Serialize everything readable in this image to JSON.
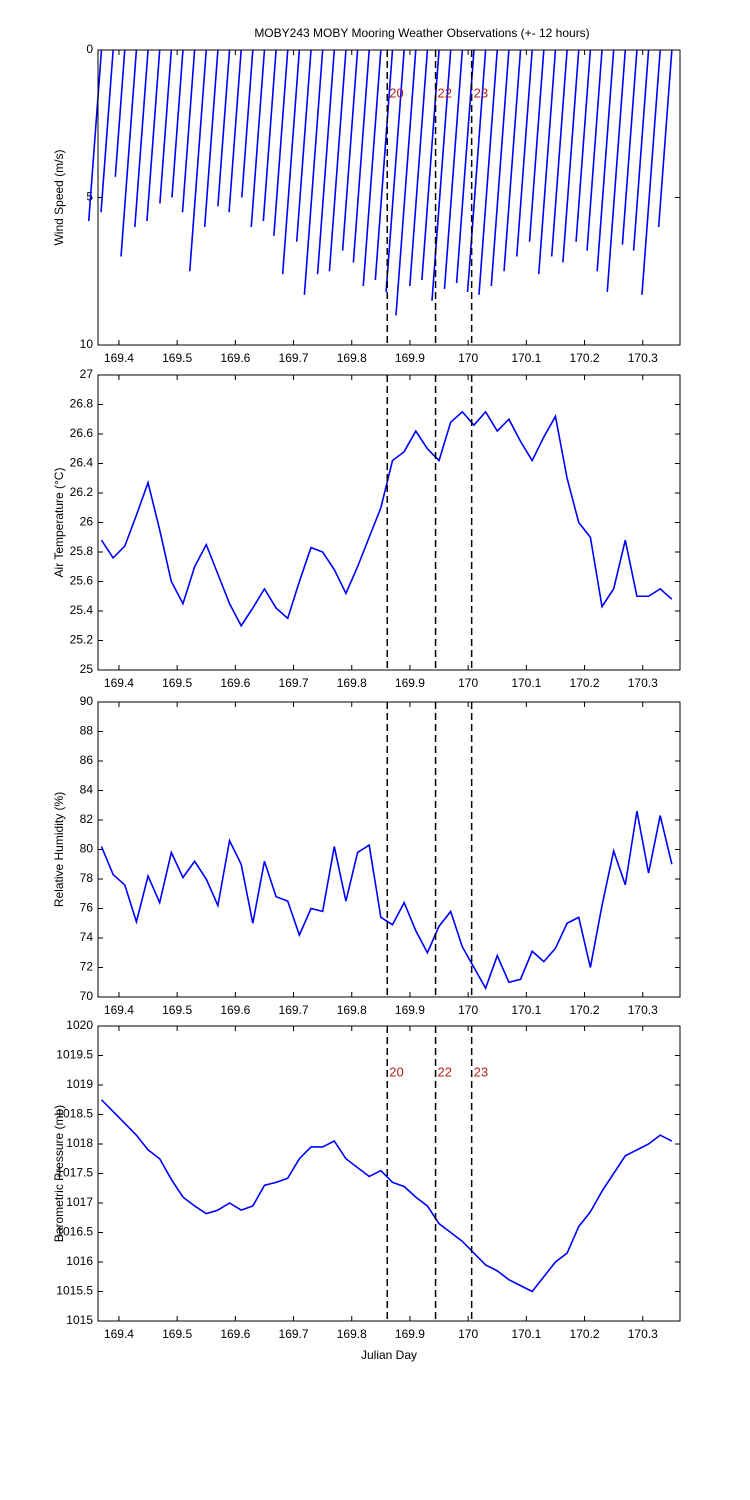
{
  "chart_data": [
    {
      "type": "stick",
      "title": "MOBY243 MOBY Mooring Weather Observations (+- 12 hours)",
      "ylabel": "Wind Speed (m/s)",
      "x": [
        169.37,
        169.39,
        169.41,
        169.43,
        169.45,
        169.47,
        169.49,
        169.51,
        169.53,
        169.55,
        169.57,
        169.59,
        169.61,
        169.63,
        169.65,
        169.67,
        169.69,
        169.71,
        169.73,
        169.75,
        169.77,
        169.79,
        169.81,
        169.83,
        169.85,
        169.87,
        169.89,
        169.91,
        169.93,
        169.95,
        169.97,
        169.99,
        170.01,
        170.03,
        170.05,
        170.07,
        170.09,
        170.11,
        170.13,
        170.15,
        170.17,
        170.19,
        170.21,
        170.23,
        170.25,
        170.27,
        170.29,
        170.31,
        170.33,
        170.35
      ],
      "values": [
        5.8,
        5.5,
        4.3,
        7.0,
        6.0,
        5.8,
        5.2,
        5.0,
        5.5,
        7.5,
        6.0,
        5.3,
        5.5,
        5.0,
        6.0,
        5.8,
        6.3,
        7.6,
        6.5,
        8.3,
        7.6,
        7.5,
        6.8,
        7.2,
        8.0,
        7.8,
        8.2,
        9.0,
        8.0,
        7.8,
        8.5,
        8.1,
        7.9,
        8.2,
        8.3,
        8.0,
        7.5,
        7.0,
        6.5,
        7.6,
        7.0,
        7.2,
        6.5,
        6.8,
        7.5,
        8.2,
        6.6,
        6.8,
        8.3,
        6.0
      ],
      "color": "#0000ff",
      "xlim": [
        169.364,
        170.364
      ],
      "xticks": [
        169.4,
        169.5,
        169.6,
        169.7,
        169.8,
        169.9,
        170,
        170.1,
        170.2,
        170.3
      ],
      "ylim": [
        10,
        0
      ],
      "yticks": [
        0,
        5,
        10
      ],
      "vlines": [
        169.861,
        169.944,
        170.006
      ],
      "vline_labels": [
        "20",
        "22",
        "23"
      ],
      "vline_label_y": 1.5
    },
    {
      "type": "line",
      "ylabel": "Air Temperature (°C)",
      "x": [
        169.37,
        169.39,
        169.41,
        169.43,
        169.45,
        169.47,
        169.49,
        169.51,
        169.53,
        169.55,
        169.57,
        169.59,
        169.61,
        169.63,
        169.65,
        169.67,
        169.69,
        169.71,
        169.73,
        169.75,
        169.77,
        169.79,
        169.81,
        169.83,
        169.85,
        169.87,
        169.89,
        169.91,
        169.93,
        169.95,
        169.97,
        169.99,
        170.01,
        170.03,
        170.05,
        170.07,
        170.09,
        170.11,
        170.13,
        170.15,
        170.17,
        170.19,
        170.21,
        170.23,
        170.25,
        170.27,
        170.29,
        170.31,
        170.33,
        170.35
      ],
      "values": [
        25.88,
        25.76,
        25.84,
        26.05,
        26.27,
        25.95,
        25.6,
        25.45,
        25.7,
        25.85,
        25.65,
        25.45,
        25.3,
        25.42,
        25.55,
        25.42,
        25.35,
        25.6,
        25.83,
        25.8,
        25.68,
        25.52,
        25.7,
        25.9,
        26.1,
        26.42,
        26.48,
        26.62,
        26.5,
        26.42,
        26.68,
        26.75,
        26.66,
        26.75,
        26.62,
        26.7,
        26.55,
        26.42,
        26.58,
        26.72,
        26.3,
        26.0,
        25.9,
        25.43,
        25.55,
        25.88,
        25.5,
        25.5,
        25.55,
        25.48
      ],
      "color": "#0000ff",
      "xlim": [
        169.364,
        170.364
      ],
      "xticks": [
        169.4,
        169.5,
        169.6,
        169.7,
        169.8,
        169.9,
        170,
        170.1,
        170.2,
        170.3
      ],
      "ylim": [
        25,
        27
      ],
      "yticks": [
        25,
        25.2,
        25.4,
        25.6,
        25.8,
        26,
        26.2,
        26.4,
        26.6,
        26.8,
        27
      ],
      "vlines": [
        169.861,
        169.944,
        170.006
      ]
    },
    {
      "type": "line",
      "ylabel": "Relative Humidity (%)",
      "x": [
        169.37,
        169.39,
        169.41,
        169.43,
        169.45,
        169.47,
        169.49,
        169.51,
        169.53,
        169.55,
        169.57,
        169.59,
        169.61,
        169.63,
        169.65,
        169.67,
        169.69,
        169.71,
        169.73,
        169.75,
        169.77,
        169.79,
        169.81,
        169.83,
        169.85,
        169.87,
        169.89,
        169.91,
        169.93,
        169.95,
        169.97,
        169.99,
        170.01,
        170.03,
        170.05,
        170.07,
        170.09,
        170.11,
        170.13,
        170.15,
        170.17,
        170.19,
        170.21,
        170.23,
        170.25,
        170.27,
        170.29,
        170.31,
        170.33,
        170.35
      ],
      "values": [
        80.2,
        78.3,
        77.6,
        75.1,
        78.2,
        76.4,
        79.8,
        78.1,
        79.2,
        78.0,
        76.2,
        80.6,
        79.0,
        75.0,
        79.2,
        76.8,
        76.5,
        74.2,
        76.0,
        75.8,
        80.2,
        76.5,
        79.8,
        80.3,
        75.4,
        74.9,
        76.4,
        74.5,
        73.0,
        74.8,
        75.8,
        73.4,
        72.0,
        70.6,
        72.8,
        71.0,
        71.2,
        73.1,
        72.4,
        73.3,
        75.0,
        75.4,
        72.0,
        76.2,
        79.9,
        77.6,
        82.6,
        78.4,
        82.3,
        79.0
      ],
      "color": "#0000ff",
      "xlim": [
        169.364,
        170.364
      ],
      "xticks": [
        169.4,
        169.5,
        169.6,
        169.7,
        169.8,
        169.9,
        170,
        170.1,
        170.2,
        170.3
      ],
      "ylim": [
        70,
        90
      ],
      "yticks": [
        70,
        72,
        74,
        76,
        78,
        80,
        82,
        84,
        86,
        88,
        90
      ],
      "vlines": [
        169.861,
        169.944,
        170.006
      ]
    },
    {
      "type": "line",
      "ylabel": "Barometric Pressure (mb)",
      "xlabel": "Julian Day",
      "x": [
        169.37,
        169.39,
        169.41,
        169.43,
        169.45,
        169.47,
        169.49,
        169.51,
        169.53,
        169.55,
        169.57,
        169.59,
        169.61,
        169.63,
        169.65,
        169.67,
        169.69,
        169.71,
        169.73,
        169.75,
        169.77,
        169.79,
        169.81,
        169.83,
        169.85,
        169.87,
        169.89,
        169.91,
        169.93,
        169.95,
        169.97,
        169.99,
        170.01,
        170.03,
        170.05,
        170.07,
        170.09,
        170.11,
        170.13,
        170.15,
        170.17,
        170.19,
        170.21,
        170.23,
        170.25,
        170.27,
        170.29,
        170.31,
        170.33,
        170.35
      ],
      "values": [
        1018.75,
        1018.55,
        1018.35,
        1018.15,
        1017.9,
        1017.75,
        1017.4,
        1017.1,
        1016.95,
        1016.82,
        1016.88,
        1017.0,
        1016.88,
        1016.95,
        1017.3,
        1017.35,
        1017.42,
        1017.75,
        1017.95,
        1017.95,
        1018.05,
        1017.75,
        1017.6,
        1017.45,
        1017.55,
        1017.35,
        1017.28,
        1017.1,
        1016.95,
        1016.65,
        1016.5,
        1016.35,
        1016.15,
        1015.95,
        1015.85,
        1015.7,
        1015.6,
        1015.5,
        1015.75,
        1016.0,
        1016.15,
        1016.6,
        1016.85,
        1017.2,
        1017.5,
        1017.8,
        1017.9,
        1018.0,
        1018.15,
        1018.05
      ],
      "color": "#0000ff",
      "xlim": [
        169.364,
        170.364
      ],
      "xticks": [
        169.4,
        169.5,
        169.6,
        169.7,
        169.8,
        169.9,
        170,
        170.1,
        170.2,
        170.3
      ],
      "ylim": [
        1015,
        1020
      ],
      "yticks": [
        1015,
        1015.5,
        1016,
        1016.5,
        1017,
        1017.5,
        1018,
        1018.5,
        1019,
        1019.5,
        1020
      ],
      "vlines": [
        169.861,
        169.944,
        170.006
      ],
      "vline_labels": [
        "20",
        "22",
        "23"
      ],
      "vline_label_y": 1019.2
    }
  ]
}
